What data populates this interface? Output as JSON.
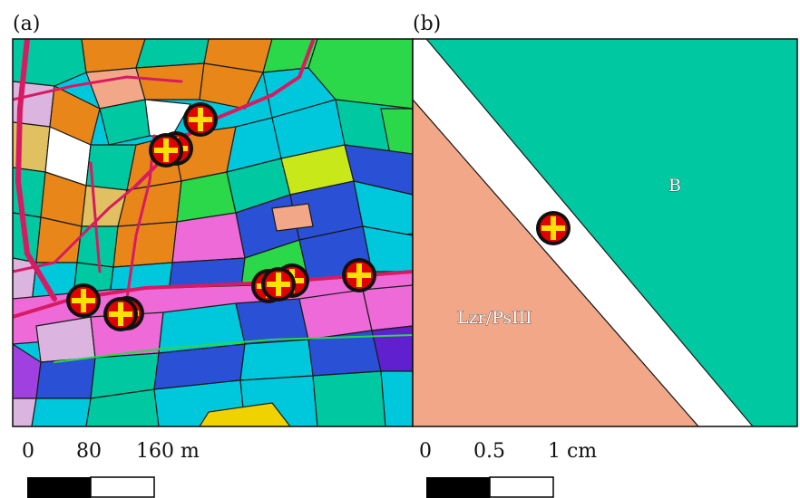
{
  "panels": {
    "a": {
      "label": "(a)",
      "scale": {
        "ticks": [
          "0",
          "80",
          "160 m"
        ]
      },
      "markers": 10
    },
    "b": {
      "label": "(b)",
      "scale": {
        "ticks": [
          "0",
          "0.5",
          "1 cm"
        ]
      },
      "zones": {
        "upper": "B",
        "lower": "Lzr/PsIII"
      }
    }
  },
  "colors": {
    "teal": "#00c8a0",
    "salmon": "#f2a888",
    "cyan": "#00c8dc",
    "blue": "#2a50d6",
    "magenta": "#ee6ad8",
    "orange": "#e8861a",
    "green": "#2ad84a",
    "lilac": "#dcb4e0",
    "yellow": "#f0d200",
    "road": "#d81a62",
    "marker_fill": "#e00000",
    "marker_cross": "#ffe000"
  }
}
